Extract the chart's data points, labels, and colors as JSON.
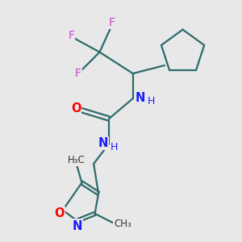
{
  "bg_color": "#e8e8e8",
  "bond_color": "#2d6b6b",
  "N_color": "#1a1aff",
  "O_color": "#ff0000",
  "F_color": "#cc44cc",
  "C_color": "#333333",
  "line_width": 1.6,
  "figsize": [
    3.0,
    3.0
  ],
  "dpi": 100,
  "xlim": [
    0,
    10
  ],
  "ylim": [
    0,
    10
  ]
}
